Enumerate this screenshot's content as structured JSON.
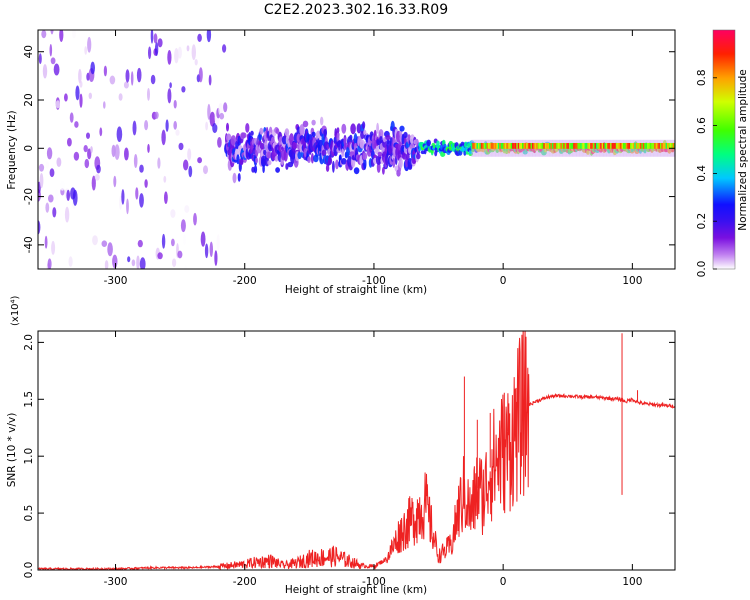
{
  "figure_title": "C2E2.2023.302.16.33.R09",
  "chart_data": [
    {
      "type": "heatmap",
      "xlabel": "Height of straight line (km)",
      "ylabel": "Frequency (Hz)",
      "xlim": [
        -360,
        133
      ],
      "ylim": [
        -50,
        49
      ],
      "x_ticks": [
        -300,
        -200,
        -100,
        0,
        100
      ],
      "y_ticks": [
        -40,
        -20,
        0,
        20,
        40
      ],
      "colorbar": {
        "label": "Normalized spectral amplitude",
        "range": [
          0.0,
          1.0
        ],
        "ticks": [
          0.0,
          0.2,
          0.4,
          0.6,
          0.8
        ],
        "tick_labels": [
          "0.0",
          "0.2",
          "0.4",
          "0.6",
          "0.8"
        ]
      },
      "colormap": [
        "#ffffff",
        "#e8d0f8",
        "#b070ee",
        "#7a10e0",
        "#3a10f0",
        "#1010ff",
        "#00c8ff",
        "#00ff80",
        "#40ff00",
        "#d0ff00",
        "#ffa000",
        "#ff2000",
        "#ff0060"
      ],
      "description_regions": [
        {
          "x_range": [
            -360,
            -215
          ],
          "amplitude": [
            0.0,
            0.35
          ],
          "freq_spread": 50
        },
        {
          "x_range": [
            -215,
            -65
          ],
          "amplitude": [
            0.1,
            0.45
          ],
          "freq_spread": 12
        },
        {
          "x_range": [
            -65,
            -20
          ],
          "amplitude": [
            0.25,
            0.55
          ],
          "freq_spread": 4
        },
        {
          "x_range": [
            -20,
            133
          ],
          "amplitude": [
            0.45,
            0.95
          ],
          "freq_spread": 2
        }
      ]
    },
    {
      "type": "line",
      "xlabel": "Height of straight line (km)",
      "ylabel": "SNR (10 * v/v)",
      "y_multiplier": "(x10⁴)",
      "xlim": [
        -360,
        133
      ],
      "ylim": [
        0.0,
        2.1
      ],
      "x_ticks": [
        -300,
        -200,
        -100,
        0,
        100
      ],
      "y_ticks": [
        0.0,
        0.5,
        1.0,
        1.5,
        2.0
      ],
      "y_tick_labels": [
        "0.0",
        "0.5",
        "1.0",
        "1.5",
        "2.0"
      ],
      "color": "#ee2222",
      "x": [
        -360,
        -330,
        -300,
        -270,
        -240,
        -220,
        -200,
        -190,
        -180,
        -170,
        -160,
        -150,
        -140,
        -130,
        -120,
        -110,
        -100,
        -90,
        -80,
        -70,
        -60,
        -50,
        -40,
        -35,
        -30,
        -25,
        -20,
        -15,
        -10,
        -5,
        0,
        5,
        10,
        15,
        20,
        25,
        30,
        35,
        40,
        50,
        60,
        70,
        80,
        90,
        95,
        100,
        105,
        110,
        120,
        133
      ],
      "y": [
        0.01,
        0.01,
        0.01,
        0.02,
        0.02,
        0.03,
        0.05,
        0.07,
        0.08,
        0.04,
        0.06,
        0.1,
        0.11,
        0.12,
        0.08,
        0.04,
        0.03,
        0.1,
        0.32,
        0.45,
        0.58,
        0.12,
        0.22,
        0.5,
        0.68,
        0.48,
        0.72,
        0.65,
        0.9,
        0.96,
        1.05,
        1.1,
        1.25,
        1.38,
        1.45,
        1.48,
        1.5,
        1.52,
        1.53,
        1.53,
        1.52,
        1.52,
        1.51,
        1.5,
        1.48,
        1.5,
        1.47,
        1.46,
        1.45,
        1.44
      ],
      "spikes": [
        {
          "x": -30,
          "y": 1.7
        },
        {
          "x": -20,
          "y": 1.32
        },
        {
          "x": -10,
          "y": 1.38
        },
        {
          "x": 10,
          "y": 1.6
        },
        {
          "x": 92,
          "y": 2.08
        },
        {
          "x": 92,
          "y": 0.66
        },
        {
          "x": 104,
          "y": 1.58
        }
      ]
    }
  ]
}
